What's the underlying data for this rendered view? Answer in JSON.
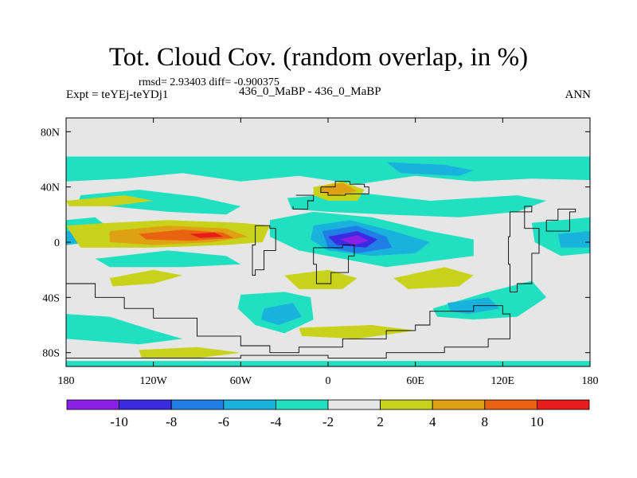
{
  "chart_data": {
    "type": "heatmap",
    "title": "Tot. Cloud Cov. (random overlap, in %)",
    "stats_line": "rmsd= 2.93403 diff= -0.900375",
    "left_label": "Expt = teYEj-teYDj1",
    "center_label": "436_0_MaBP - 436_0_MaBP",
    "right_label": "ANN",
    "xlim": [
      -180,
      180
    ],
    "ylim": [
      -90,
      90
    ],
    "x_ticks": [
      {
        "value": -180,
        "label": "180"
      },
      {
        "value": -120,
        "label": "120W"
      },
      {
        "value": -60,
        "label": "60W"
      },
      {
        "value": 0,
        "label": "0"
      },
      {
        "value": 60,
        "label": "60E"
      },
      {
        "value": 120,
        "label": "120E"
      },
      {
        "value": 180,
        "label": "180"
      }
    ],
    "y_ticks": [
      {
        "value": 80,
        "label": "80N"
      },
      {
        "value": 40,
        "label": "40N"
      },
      {
        "value": 0,
        "label": "0"
      },
      {
        "value": -40,
        "label": "40S"
      },
      {
        "value": -80,
        "label": "80S"
      }
    ],
    "colorbar": {
      "levels": [
        -10,
        -8,
        -6,
        -4,
        -2,
        2,
        4,
        8,
        10
      ],
      "labels": [
        "-10",
        "-8",
        "-6",
        "-4",
        "-2",
        "2",
        "4",
        "8",
        "10"
      ],
      "colors": [
        "#8a1fe8",
        "#3a2be0",
        "#1f7fe6",
        "#19b2dd",
        "#21e0c2",
        "#e6e6e6",
        "#c8d21b",
        "#e0a013",
        "#e8620f",
        "#e81c1c"
      ]
    },
    "fill_regions": [
      {
        "level": "-4",
        "color": "#21e0c2",
        "points": [
          [
            -180,
            62
          ],
          [
            180,
            62
          ],
          [
            180,
            45
          ],
          [
            140,
            46
          ],
          [
            100,
            44
          ],
          [
            60,
            48
          ],
          [
            20,
            42
          ],
          [
            -20,
            48
          ],
          [
            -60,
            44
          ],
          [
            -100,
            50
          ],
          [
            -140,
            46
          ],
          [
            -180,
            44
          ]
        ]
      },
      {
        "level": "-4",
        "color": "#21e0c2",
        "points": [
          [
            -170,
            34
          ],
          [
            -130,
            38
          ],
          [
            -90,
            33
          ],
          [
            -60,
            26
          ],
          [
            -70,
            20
          ],
          [
            -110,
            22
          ],
          [
            -150,
            26
          ],
          [
            -172,
            28
          ]
        ]
      },
      {
        "level": "-4",
        "color": "#21e0c2",
        "points": [
          [
            -28,
            32
          ],
          [
            20,
            36
          ],
          [
            70,
            30
          ],
          [
            130,
            34
          ],
          [
            150,
            30
          ],
          [
            130,
            22
          ],
          [
            90,
            18
          ],
          [
            40,
            20
          ],
          [
            0,
            22
          ],
          [
            -25,
            24
          ]
        ]
      },
      {
        "level": "-4",
        "color": "#21e0c2",
        "points": [
          [
            -40,
            16
          ],
          [
            -10,
            22
          ],
          [
            30,
            18
          ],
          [
            70,
            8
          ],
          [
            100,
            2
          ],
          [
            100,
            -10
          ],
          [
            70,
            -14
          ],
          [
            40,
            -18
          ],
          [
            10,
            -12
          ],
          [
            -20,
            -6
          ],
          [
            -40,
            4
          ]
        ]
      },
      {
        "level": "-4",
        "color": "#21e0c2",
        "points": [
          [
            -180,
            16
          ],
          [
            -160,
            18
          ],
          [
            -150,
            10
          ],
          [
            -160,
            0
          ],
          [
            -180,
            -2
          ]
        ]
      },
      {
        "level": "-4",
        "color": "#21e0c2",
        "points": [
          [
            140,
            14
          ],
          [
            180,
            18
          ],
          [
            180,
            -8
          ],
          [
            160,
            -10
          ],
          [
            142,
            0
          ]
        ]
      },
      {
        "level": "-4",
        "color": "#21e0c2",
        "points": [
          [
            -160,
            -12
          ],
          [
            -110,
            -6
          ],
          [
            -70,
            -10
          ],
          [
            -60,
            -16
          ],
          [
            -100,
            -18
          ],
          [
            -150,
            -18
          ]
        ]
      },
      {
        "level": "-4",
        "color": "#21e0c2",
        "points": [
          [
            -60,
            -38
          ],
          [
            -30,
            -36
          ],
          [
            -12,
            -40
          ],
          [
            -10,
            -56
          ],
          [
            -30,
            -66
          ],
          [
            -50,
            -60
          ],
          [
            -62,
            -48
          ]
        ]
      },
      {
        "level": "-4",
        "color": "#21e0c2",
        "points": [
          [
            72,
            -48
          ],
          [
            110,
            -36
          ],
          [
            140,
            -28
          ],
          [
            150,
            -40
          ],
          [
            130,
            -54
          ],
          [
            100,
            -56
          ],
          [
            75,
            -54
          ]
        ]
      },
      {
        "level": "-4",
        "color": "#21e0c2",
        "points": [
          [
            -180,
            -52
          ],
          [
            -150,
            -54
          ],
          [
            -120,
            -64
          ],
          [
            -100,
            -70
          ],
          [
            -130,
            -74
          ],
          [
            -180,
            -70
          ]
        ]
      },
      {
        "level": "-4",
        "color": "#21e0c2",
        "points": [
          [
            -180,
            -86
          ],
          [
            180,
            -86
          ],
          [
            180,
            -90
          ],
          [
            -180,
            -90
          ]
        ]
      },
      {
        "level": "-6",
        "color": "#19b2dd",
        "points": [
          [
            -180,
            8
          ],
          [
            -170,
            8
          ],
          [
            -168,
            0
          ],
          [
            -180,
            -2
          ]
        ]
      },
      {
        "level": "-6",
        "color": "#19b2dd",
        "points": [
          [
            158,
            6
          ],
          [
            180,
            8
          ],
          [
            180,
            -4
          ],
          [
            160,
            -4
          ]
        ]
      },
      {
        "level": "-6",
        "color": "#19b2dd",
        "points": [
          [
            -10,
            12
          ],
          [
            15,
            16
          ],
          [
            45,
            8
          ],
          [
            70,
            0
          ],
          [
            60,
            -8
          ],
          [
            30,
            -10
          ],
          [
            0,
            -6
          ],
          [
            -12,
            2
          ]
        ]
      },
      {
        "level": "-6",
        "color": "#19b2dd",
        "points": [
          [
            40,
            58
          ],
          [
            80,
            56
          ],
          [
            100,
            52
          ],
          [
            90,
            48
          ],
          [
            50,
            50
          ]
        ]
      },
      {
        "level": "-6",
        "color": "#19b2dd",
        "points": [
          [
            -44,
            -48
          ],
          [
            -24,
            -44
          ],
          [
            -18,
            -54
          ],
          [
            -34,
            -60
          ],
          [
            -46,
            -56
          ]
        ]
      },
      {
        "level": "-6",
        "color": "#19b2dd",
        "points": [
          [
            82,
            -44
          ],
          [
            110,
            -40
          ],
          [
            118,
            -48
          ],
          [
            96,
            -52
          ],
          [
            84,
            -50
          ]
        ]
      },
      {
        "level": "-8",
        "color": "#1f7fe6",
        "points": [
          [
            -4,
            8
          ],
          [
            20,
            12
          ],
          [
            40,
            4
          ],
          [
            44,
            -4
          ],
          [
            20,
            -8
          ],
          [
            0,
            -4
          ]
        ]
      },
      {
        "level": "-10",
        "color": "#3a2be0",
        "points": [
          [
            0,
            4
          ],
          [
            20,
            8
          ],
          [
            34,
            2
          ],
          [
            26,
            -4
          ],
          [
            6,
            -2
          ]
        ]
      },
      {
        "level": "<-10",
        "color": "#8a1fe8",
        "points": [
          [
            8,
            2
          ],
          [
            20,
            5
          ],
          [
            28,
            1
          ],
          [
            18,
            -2
          ]
        ]
      },
      {
        "level": "2",
        "color": "#c8d21b",
        "points": [
          [
            -180,
            12
          ],
          [
            -150,
            14
          ],
          [
            -110,
            16
          ],
          [
            -60,
            14
          ],
          [
            -40,
            12
          ],
          [
            -45,
            0
          ],
          [
            -70,
            -2
          ],
          [
            -120,
            -4
          ],
          [
            -170,
            -4
          ]
        ]
      },
      {
        "level": "2",
        "color": "#c8d21b",
        "points": [
          [
            -180,
            30
          ],
          [
            -140,
            34
          ],
          [
            -120,
            30
          ],
          [
            -150,
            26
          ],
          [
            -178,
            26
          ]
        ]
      },
      {
        "level": "2",
        "color": "#c8d21b",
        "points": [
          [
            -10,
            40
          ],
          [
            10,
            44
          ],
          [
            25,
            38
          ],
          [
            20,
            30
          ],
          [
            0,
            30
          ],
          [
            -10,
            34
          ]
        ]
      },
      {
        "level": "2",
        "color": "#c8d21b",
        "points": [
          [
            -150,
            -26
          ],
          [
            -120,
            -20
          ],
          [
            -100,
            -24
          ],
          [
            -120,
            -30
          ],
          [
            -148,
            -32
          ]
        ]
      },
      {
        "level": "2",
        "color": "#c8d21b",
        "points": [
          [
            -30,
            -24
          ],
          [
            0,
            -20
          ],
          [
            20,
            -26
          ],
          [
            10,
            -34
          ],
          [
            -20,
            -34
          ]
        ]
      },
      {
        "level": "2",
        "color": "#c8d21b",
        "points": [
          [
            45,
            -26
          ],
          [
            80,
            -18
          ],
          [
            100,
            -24
          ],
          [
            90,
            -32
          ],
          [
            55,
            -34
          ]
        ]
      },
      {
        "level": "2",
        "color": "#c8d21b",
        "points": [
          [
            -130,
            -78
          ],
          [
            -90,
            -76
          ],
          [
            -60,
            -80
          ],
          [
            -90,
            -84
          ],
          [
            -128,
            -84
          ]
        ]
      },
      {
        "level": "2",
        "color": "#c8d21b",
        "points": [
          [
            -20,
            -62
          ],
          [
            30,
            -60
          ],
          [
            60,
            -64
          ],
          [
            20,
            -70
          ],
          [
            -18,
            -68
          ]
        ]
      },
      {
        "level": "4",
        "color": "#e0a013",
        "points": [
          [
            -150,
            8
          ],
          [
            -110,
            12
          ],
          [
            -70,
            10
          ],
          [
            -55,
            4
          ],
          [
            -80,
            0
          ],
          [
            -120,
            -2
          ],
          [
            -150,
            0
          ]
        ]
      },
      {
        "level": "4",
        "color": "#e0a013",
        "points": [
          [
            -5,
            40
          ],
          [
            10,
            43
          ],
          [
            20,
            37
          ],
          [
            5,
            34
          ],
          [
            -6,
            36
          ]
        ]
      },
      {
        "level": "8",
        "color": "#e8620f",
        "points": [
          [
            -130,
            6
          ],
          [
            -100,
            9
          ],
          [
            -72,
            7
          ],
          [
            -65,
            3
          ],
          [
            -95,
            1
          ],
          [
            -125,
            2
          ]
        ]
      },
      {
        "level": "10",
        "color": "#e81c1c",
        "points": [
          [
            -95,
            6
          ],
          [
            -78,
            7
          ],
          [
            -72,
            4
          ],
          [
            -88,
            3
          ]
        ]
      }
    ],
    "coastlines": [
      [
        [
          -180,
          -30
        ],
        [
          -160,
          -40
        ],
        [
          -140,
          -48
        ],
        [
          -120,
          -55
        ],
        [
          -90,
          -68
        ],
        [
          -60,
          -75
        ],
        [
          -40,
          -80
        ],
        [
          -20,
          -76
        ],
        [
          10,
          -70
        ],
        [
          40,
          -64
        ],
        [
          60,
          -60
        ],
        [
          70,
          -50
        ],
        [
          100,
          -46
        ],
        [
          120,
          -52
        ],
        [
          125,
          -70
        ],
        [
          110,
          -76
        ],
        [
          80,
          -80
        ],
        [
          40,
          -84
        ],
        [
          0,
          -82
        ],
        [
          -60,
          -84
        ],
        [
          -120,
          -84
        ],
        [
          -180,
          -84
        ]
      ],
      [
        [
          -5,
          40
        ],
        [
          5,
          44
        ],
        [
          15,
          42
        ],
        [
          25,
          40
        ],
        [
          28,
          35
        ],
        [
          12,
          34
        ],
        [
          0,
          36
        ],
        [
          -5,
          40
        ]
      ],
      [
        [
          -50,
          12
        ],
        [
          -40,
          10
        ],
        [
          -36,
          -6
        ],
        [
          -44,
          -20
        ],
        [
          -50,
          -24
        ],
        [
          -52,
          -2
        ],
        [
          -50,
          12
        ]
      ],
      [
        [
          -10,
          -4
        ],
        [
          10,
          -2
        ],
        [
          18,
          -10
        ],
        [
          14,
          -22
        ],
        [
          2,
          -30
        ],
        [
          -8,
          -16
        ],
        [
          -10,
          -4
        ]
      ],
      [
        [
          125,
          22
        ],
        [
          140,
          26
        ],
        [
          135,
          10
        ],
        [
          145,
          -8
        ],
        [
          140,
          -30
        ],
        [
          130,
          -36
        ],
        [
          125,
          -16
        ],
        [
          124,
          4
        ],
        [
          125,
          22
        ]
      ],
      [
        [
          150,
          16
        ],
        [
          158,
          24
        ],
        [
          170,
          22
        ],
        [
          166,
          8
        ],
        [
          156,
          8
        ],
        [
          150,
          16
        ]
      ],
      [
        [
          -22,
          34
        ],
        [
          -10,
          30
        ],
        [
          -14,
          24
        ],
        [
          -24,
          26
        ]
      ]
    ]
  }
}
